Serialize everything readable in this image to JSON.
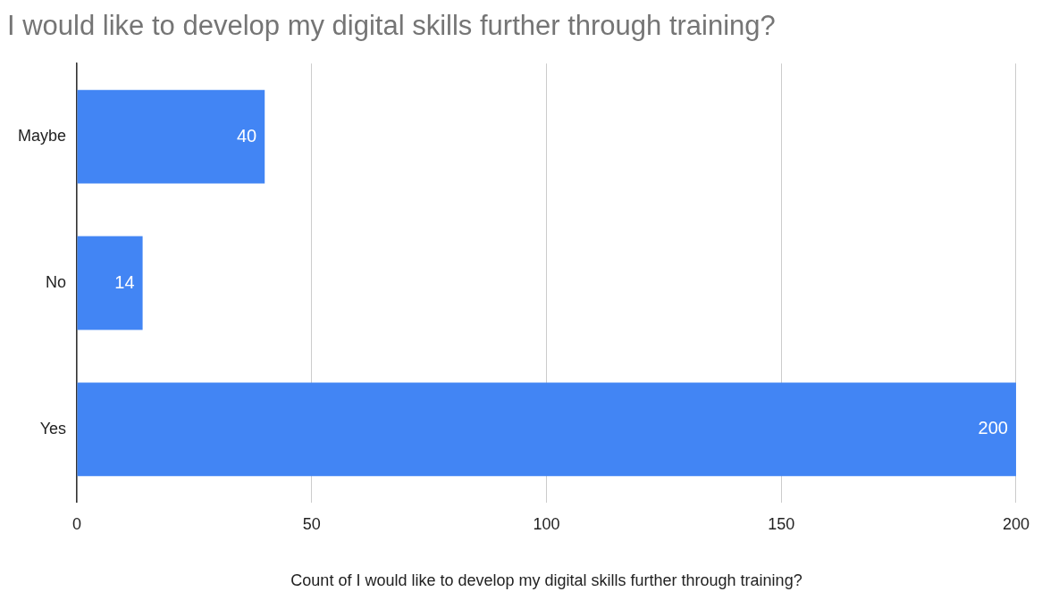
{
  "chart_data": {
    "type": "bar",
    "orientation": "horizontal",
    "title": "I would like to develop my digital skills further through training?",
    "xlabel": "Count of I would like to develop my digital skills further through training?",
    "categories": [
      "Maybe",
      "No",
      "Yes"
    ],
    "values": [
      40,
      14,
      200
    ],
    "color": "#4285f4",
    "xlim": [
      0,
      200
    ],
    "xticks": [
      0,
      50,
      100,
      150,
      200
    ],
    "grid": "x",
    "data_labels": true
  }
}
